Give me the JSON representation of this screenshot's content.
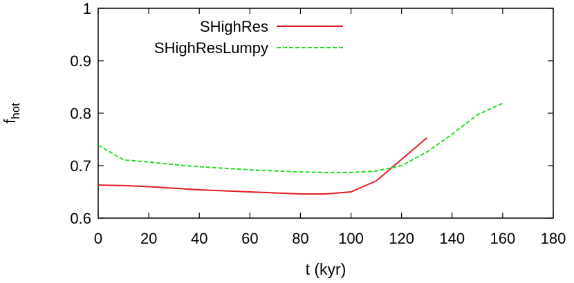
{
  "chart_data": {
    "type": "line",
    "title": "",
    "xlabel": "t (kyr)",
    "ylabel": {
      "base": "f",
      "subscript": "hot"
    },
    "xlim": [
      0,
      180
    ],
    "ylim": [
      0.6,
      1.0
    ],
    "xticks": [
      0,
      20,
      40,
      60,
      80,
      100,
      120,
      140,
      160,
      180
    ],
    "yticks": [
      0.6,
      0.7,
      0.8,
      0.9,
      1.0
    ],
    "ytick_labels": [
      "0.6",
      "0.7",
      "0.8",
      "0.9",
      "1"
    ],
    "grid": false,
    "legend_position": "top-left",
    "series": [
      {
        "name": "SHighRes",
        "color": "#e41a1c",
        "style": "solid",
        "x": [
          0,
          10,
          20,
          30,
          40,
          50,
          60,
          70,
          80,
          90,
          100,
          110,
          120,
          130
        ],
        "y": [
          0.663,
          0.662,
          0.66,
          0.657,
          0.654,
          0.652,
          0.65,
          0.648,
          0.646,
          0.646,
          0.65,
          0.671,
          0.712,
          0.753
        ]
      },
      {
        "name": "SHighResLumpy",
        "color": "#22dd22",
        "style": "dashed",
        "x": [
          0,
          10,
          20,
          30,
          40,
          50,
          60,
          70,
          80,
          90,
          100,
          110,
          120,
          130,
          140,
          150,
          160
        ],
        "y": [
          0.739,
          0.711,
          0.707,
          0.702,
          0.698,
          0.695,
          0.692,
          0.69,
          0.688,
          0.687,
          0.687,
          0.69,
          0.7,
          0.726,
          0.76,
          0.797,
          0.819
        ]
      }
    ]
  }
}
